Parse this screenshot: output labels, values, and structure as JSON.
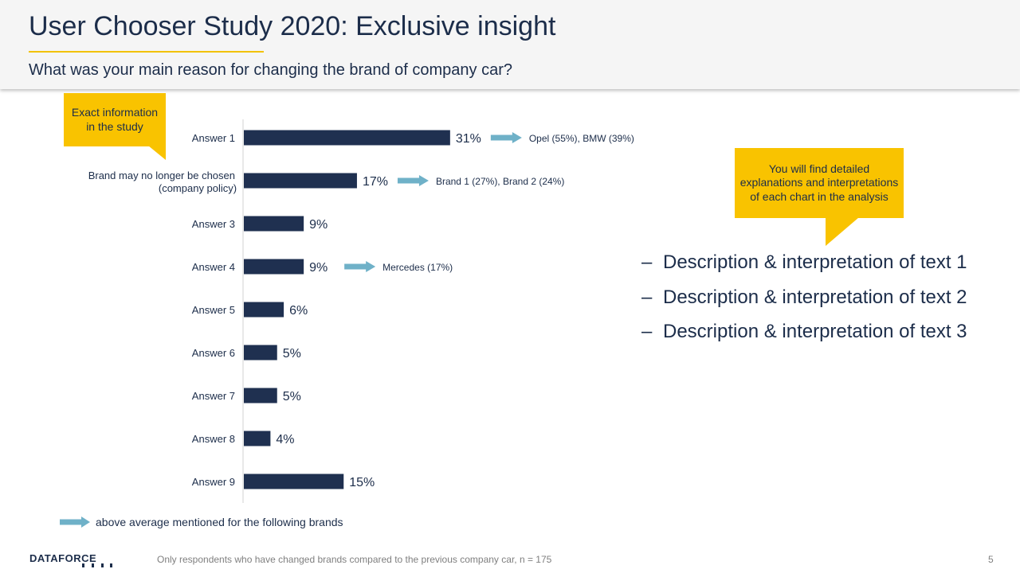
{
  "header": {
    "title": "User Chooser Study 2020: Exclusive insight",
    "subtitle": "What was your main reason for changing the brand of company car?"
  },
  "callouts": {
    "left": "Exact information in the study",
    "right": "You will find detailed explanations and interpretations of each chart in the analysis"
  },
  "chart_data": {
    "type": "bar",
    "orientation": "horizontal",
    "categories": [
      "Answer 1",
      "Brand may no longer be chosen (company policy)",
      "Answer 3",
      "Answer 4",
      "Answer 5",
      "Answer 6",
      "Answer 7",
      "Answer 8",
      "Answer 9"
    ],
    "values": [
      31,
      17,
      9,
      9,
      6,
      5,
      5,
      4,
      15
    ],
    "value_labels": [
      "31%",
      "17%",
      "9%",
      "9%",
      "6%",
      "5%",
      "5%",
      "4%",
      "15%"
    ],
    "annotations": [
      {
        "category_index": 0,
        "text": "Opel (55%), BMW (39%)"
      },
      {
        "category_index": 1,
        "text": "Brand 1 (27%), Brand 2 (24%)"
      },
      {
        "category_index": 3,
        "text": "Mercedes (17%)"
      }
    ],
    "unit": "%",
    "grid": false,
    "bar_color": "#1f3050",
    "arrow_color": "#6fb1c8"
  },
  "bullets": [
    "Description & interpretation of text 1",
    "Description & interpretation of text 2",
    "Description & interpretation of text 3"
  ],
  "legend": {
    "text": "above average mentioned for the following brands",
    "icon": "arrow-right-icon"
  },
  "footer": {
    "logo": "DATAFORCE",
    "note": "Only respondents who have changed brands compared to the previous company car, n = 175",
    "page_number": "5"
  },
  "colors": {
    "accent": "#f9c300",
    "navy": "#1c2d4a"
  }
}
